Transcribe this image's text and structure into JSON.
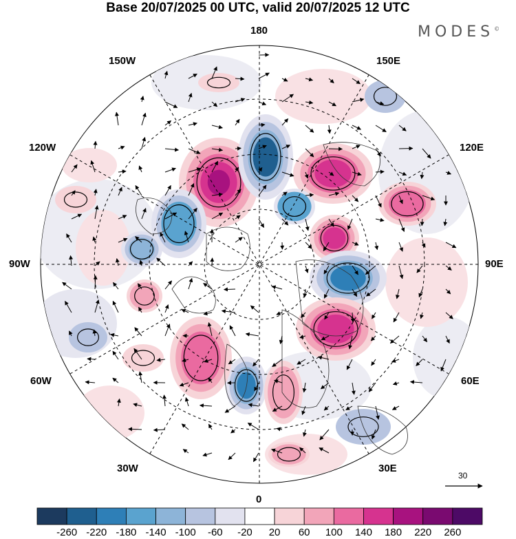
{
  "title": "Base 20/07/2025 00 UTC, valid 20/07/2025 12 UTC",
  "brand": {
    "name": "MODES",
    "mark": "©"
  },
  "map": {
    "projection": "north-polar-stereographic",
    "longitude_labels": {
      "top": "180",
      "bottom": "0",
      "left": "90W",
      "right": "90E",
      "upper_left_1": "150W",
      "upper_left_2": "120W",
      "lower_left_1": "60W",
      "lower_left_2": "30W",
      "upper_right_1": "150E",
      "upper_right_2": "120E",
      "lower_right_1": "60E",
      "lower_right_2": "30E"
    },
    "reference_vector": {
      "label": "30"
    }
  },
  "colorbar": {
    "labels": [
      "-260",
      "-220",
      "-180",
      "-140",
      "-100",
      "-60",
      "-20",
      "20",
      "60",
      "100",
      "140",
      "180",
      "220",
      "260"
    ],
    "colors": [
      "#1c3a5e",
      "#1f5f8f",
      "#2e7fb7",
      "#5aa3cf",
      "#8db4d8",
      "#b7c4e0",
      "#e2e2ef",
      "#ffffff",
      "#f7d4d8",
      "#f2a5b9",
      "#ea6aa0",
      "#d6338f",
      "#a8127f",
      "#7a0a70",
      "#4d0a66"
    ]
  },
  "anomalies": [
    {
      "value": 240,
      "color": "#a8127f"
    },
    {
      "value": -200,
      "color": "#1f5f8f"
    },
    {
      "value": 220,
      "color": "#d6338f"
    },
    {
      "value": -140,
      "color": "#5aa3cf"
    },
    {
      "value": 180,
      "color": "#d6338f"
    },
    {
      "value": -180,
      "color": "#2e7fb7"
    },
    {
      "value": 200,
      "color": "#d6338f"
    },
    {
      "value": -200,
      "color": "#2e7fb7"
    },
    {
      "value": 180,
      "color": "#ea6aa0"
    },
    {
      "value": 100,
      "color": "#f2a5b9"
    },
    {
      "value": -120,
      "color": "#5aa3cf"
    },
    {
      "value": 140,
      "color": "#ea6aa0"
    },
    {
      "value": -140,
      "color": "#8db4d8"
    },
    {
      "value": 100,
      "color": "#f2a5b9"
    },
    {
      "value": 60,
      "color": "#f7d4d8"
    },
    {
      "value": 60,
      "color": "#f7d4d8"
    },
    {
      "value": -60,
      "color": "#b7c4e0"
    },
    {
      "value": -60,
      "color": "#b7c4e0"
    },
    {
      "value": 100,
      "color": "#f2a5b9"
    },
    {
      "value": -60,
      "color": "#b7c4e0"
    },
    {
      "value": 60,
      "color": "#f7d4d8"
    }
  ]
}
